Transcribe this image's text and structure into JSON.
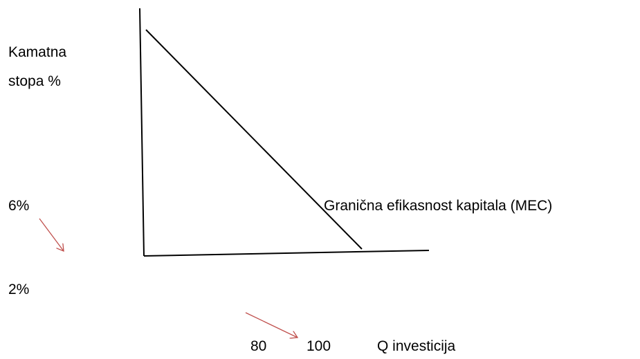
{
  "y_axis": {
    "label": [
      "Kamatna",
      "stopa %"
    ],
    "values": [
      "6%",
      "2%"
    ]
  },
  "x_axis": {
    "values": [
      "80",
      "100"
    ],
    "label": "Q investicija"
  },
  "curve": {
    "label": "Granična efikasnost kapitala (MEC)"
  }
}
